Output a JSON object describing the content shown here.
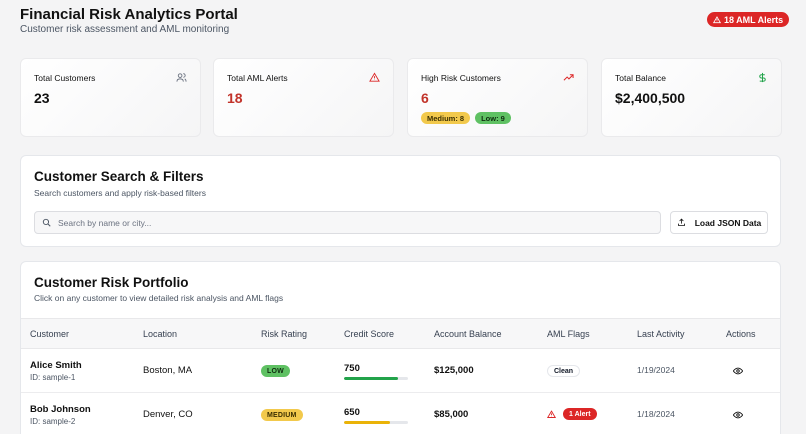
{
  "header": {
    "title": "Financial Risk Analytics Portal",
    "subtitle": "Customer risk assessment and AML monitoring",
    "alert_badge": "18 AML Alerts"
  },
  "stats": [
    {
      "label": "Total Customers",
      "value": "23",
      "icon": "users-icon"
    },
    {
      "label": "Total AML Alerts",
      "value": "18",
      "icon": "warning-icon"
    },
    {
      "label": "High Risk Customers",
      "value": "6",
      "icon": "trending-up-icon",
      "badges": [
        "Medium: 8",
        "Low: 9"
      ]
    },
    {
      "label": "Total Balance",
      "value": "$2,400,500",
      "icon": "dollar-icon"
    }
  ],
  "search": {
    "title": "Customer Search & Filters",
    "subtitle": "Search customers and apply risk-based filters",
    "placeholder": "Search by name or city...",
    "value": "",
    "load_label": "Load JSON Data"
  },
  "portfolio": {
    "title": "Customer Risk Portfolio",
    "subtitle": "Click on any customer to view detailed risk analysis and AML flags",
    "columns": [
      "Customer",
      "Location",
      "Risk Rating",
      "Credit Score",
      "Account Balance",
      "AML Flags",
      "Last Activity",
      "Actions"
    ],
    "rows": [
      {
        "name": "Alice Smith",
        "id": "ID: sample-1",
        "location": "Boston, MA",
        "risk": "LOW",
        "score": "750",
        "score_fraction": 0.85,
        "balance": "$125,000",
        "flag": "Clean",
        "last_activity": "1/19/2024"
      },
      {
        "name": "Bob Johnson",
        "id": "ID: sample-2",
        "location": "Denver, CO",
        "risk": "MEDIUM",
        "score": "650",
        "score_fraction": 0.72,
        "balance": "$85,000",
        "flag": "1 Alert",
        "last_activity": "1/18/2024"
      }
    ]
  },
  "colors": {
    "accent_red": "#dc2626",
    "success_green": "#5fc163",
    "warning_yellow": "#f2c94c"
  }
}
